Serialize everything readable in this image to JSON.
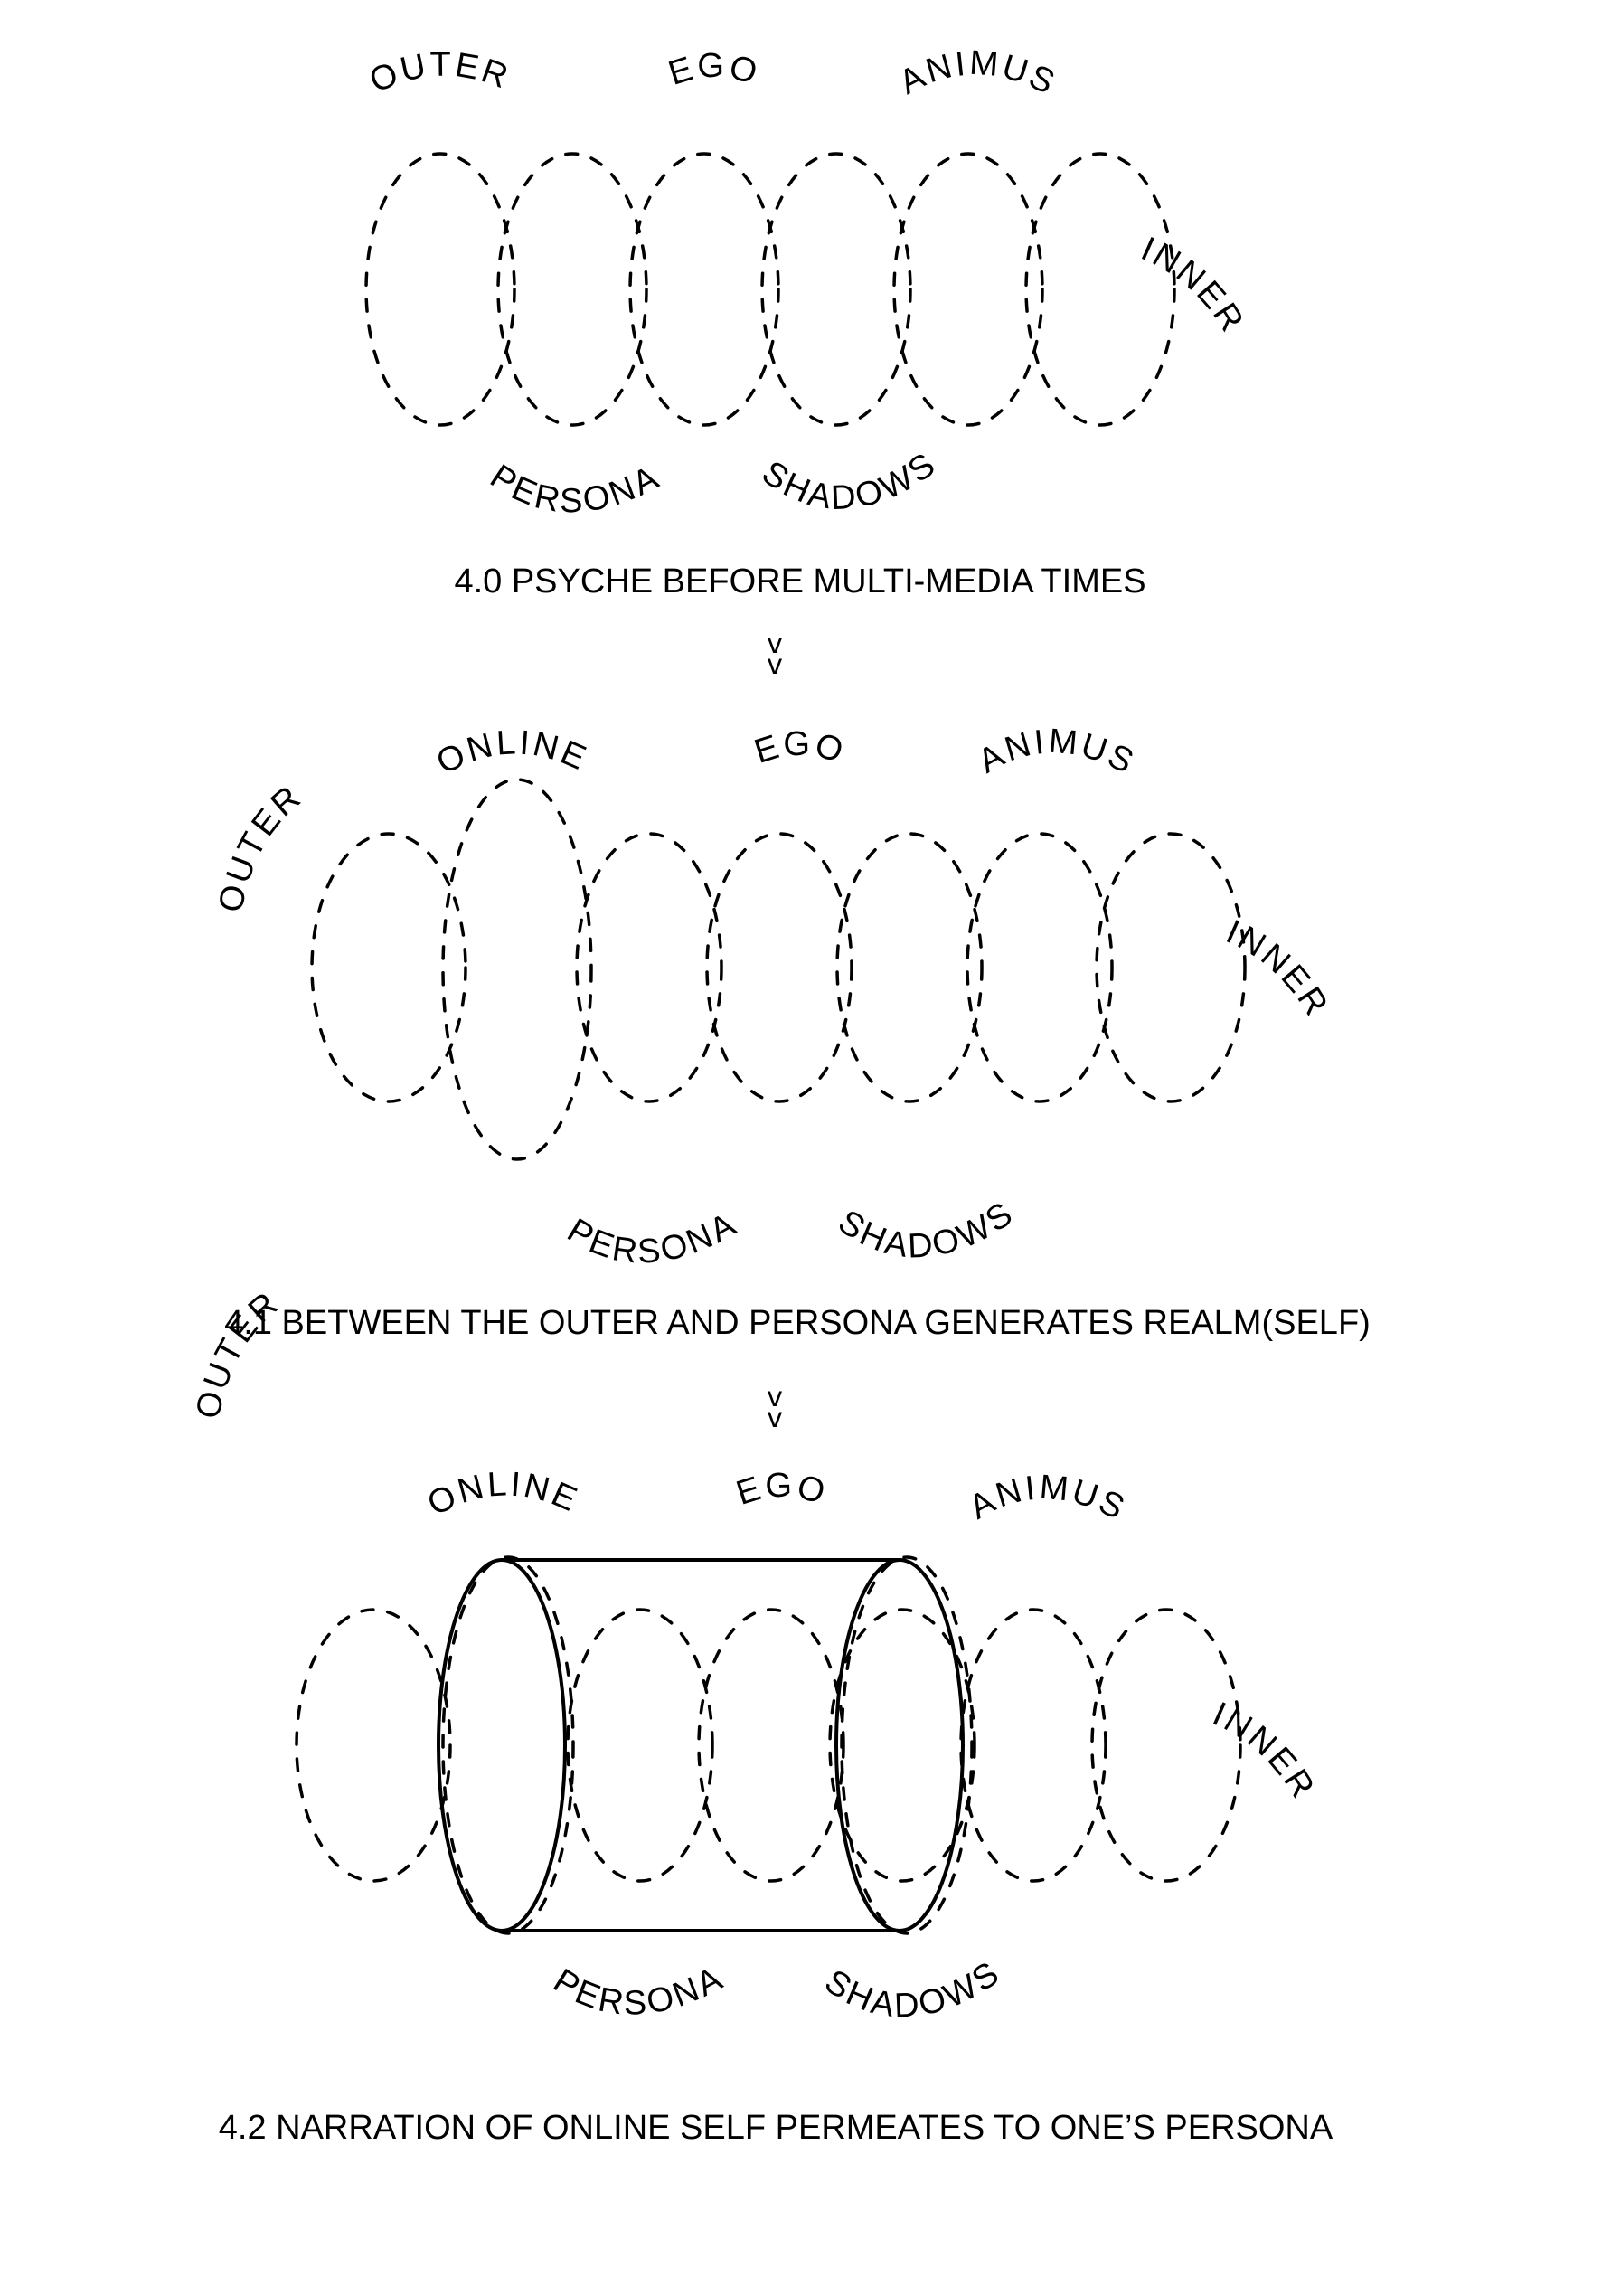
{
  "colors": {
    "ink": "#000000",
    "background": "#ffffff"
  },
  "diagrams": [
    {
      "caption": "4.0 PSYCHE BEFORE MULTI-MEDIA TIMES",
      "labels": {
        "outer": "OUTER",
        "ego": "EGO",
        "animus": "ANIMUS",
        "inner": "INNER",
        "persona": "PERSONA",
        "shadows": "SHADOWS"
      }
    },
    {
      "caption": "4.1 BETWEEN THE OUTER AND PERSONA GENERATES REALM(SELF)",
      "labels": {
        "outer": "OUTER",
        "online": "ONLINE",
        "ego": "EGO",
        "animus": "ANIMUS",
        "inner": "INNER",
        "persona": "PERSONA",
        "shadows": "SHADOWS"
      }
    },
    {
      "caption": "4.2 NARRATION OF ONLINE SELF PERMEATES TO ONE’S PERSONA",
      "labels": {
        "outer": "OUTER",
        "online": "ONLINE",
        "ego": "EGO",
        "animus": "ANIMUS",
        "inner": "INNER",
        "persona": "PERSONA",
        "shadows": "SHADOWS"
      }
    }
  ],
  "connectors": [
    {
      "glyph": "v"
    },
    {
      "glyph": "v"
    }
  ]
}
